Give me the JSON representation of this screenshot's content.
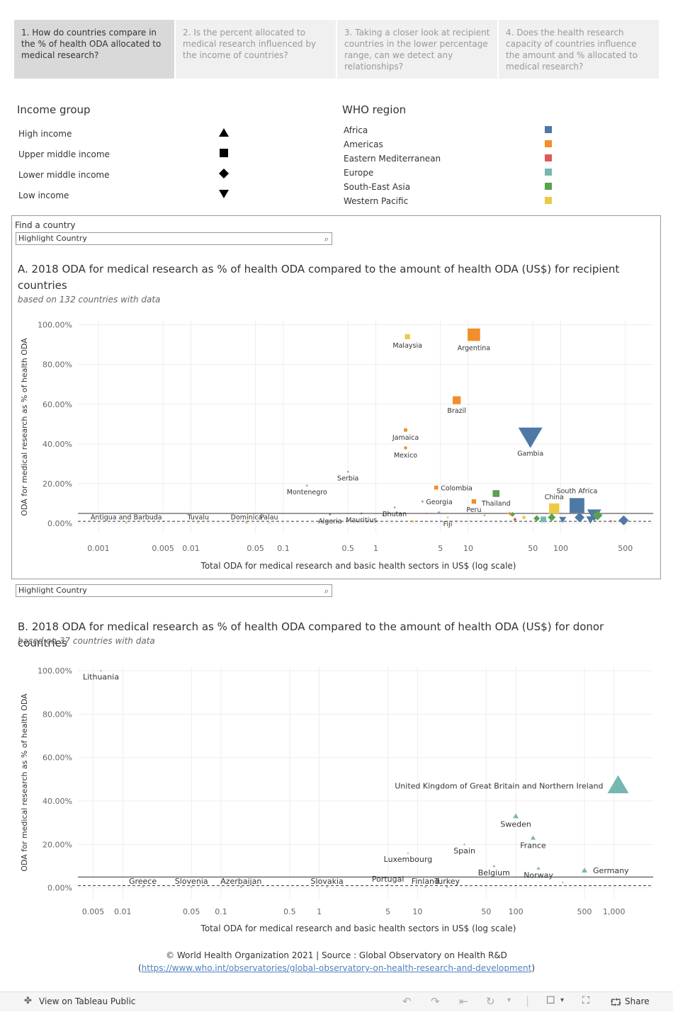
{
  "tabs": [
    "1. How do countries compare in the % of health ODA allocated to medical research?",
    "2. Is the percent allocated to medical research influenced by the income of countries?",
    "3. Taking a closer look at recipient countries in the lower percentage range, can we detect any relationships?",
    "4. Does the health research capacity of countries influence the amount and % allocated to medical research?"
  ],
  "income_legend": {
    "title": "Income group",
    "items": [
      {
        "label": "High income",
        "shape": "triangle-up"
      },
      {
        "label": "Upper middle income",
        "shape": "square"
      },
      {
        "label": "Lower middle income",
        "shape": "diamond"
      },
      {
        "label": "Low income",
        "shape": "triangle-down"
      }
    ]
  },
  "region_legend": {
    "title": "WHO region",
    "items": [
      {
        "label": "Africa",
        "color": "#4e79a7"
      },
      {
        "label": "Americas",
        "color": "#f28e2b"
      },
      {
        "label": "Eastern Mediterranean",
        "color": "#e15759"
      },
      {
        "label": "Europe",
        "color": "#76b7b2"
      },
      {
        "label": "South-East Asia",
        "color": "#59a14f"
      },
      {
        "label": "Western Pacific",
        "color": "#edc948"
      }
    ]
  },
  "find": {
    "label": "Find a country",
    "placeholder": "Highlight Country"
  },
  "find2": {
    "placeholder": "Highlight Country"
  },
  "chartA": {
    "title": "A. 2018 ODA for medical research as % of health ODA  compared to the amount of health ODA (US$) for recipient countries",
    "subtitle": "based on 132 countries with data"
  },
  "chartB": {
    "title": "B. 2018 ODA for medical research as % of health ODA compared to the amount of health ODA (US$) for donor countries",
    "subtitle": "based on 37 countries with data"
  },
  "chart_data": [
    {
      "type": "scatter",
      "xlabel": "Total ODA for medical research and basic health sectors in US$ (log scale)",
      "ylabel": "ODA for medical research as % of health ODA",
      "x_scale": "log",
      "xlim": [
        0.0006,
        1000
      ],
      "ylim": [
        -5,
        102
      ],
      "x_ticks": [
        0.001,
        0.005,
        0.01,
        0.05,
        0.1,
        0.5,
        1,
        5,
        10,
        50,
        100,
        500
      ],
      "x_tick_labels": [
        "0.001",
        "0.005",
        "0.01",
        "0.05",
        "0.1",
        "0.5",
        "1",
        "5",
        "10",
        "50",
        "100",
        "500"
      ],
      "y_ticks": [
        0,
        20,
        40,
        60,
        80,
        100
      ],
      "y_tick_labels": [
        "0.00%",
        "20.00%",
        "40.00%",
        "60.00%",
        "80.00%",
        "100.00%"
      ],
      "ref_lines": [
        5,
        1
      ],
      "points": [
        {
          "label": "Malaysia",
          "x": 2.2,
          "y": 94,
          "region": "Western Pacific",
          "income": "Upper middle income",
          "size": 9
        },
        {
          "label": "Argentina",
          "x": 11.5,
          "y": 95,
          "region": "Americas",
          "income": "Upper middle income",
          "size": 22
        },
        {
          "label": "Brazil",
          "x": 7.5,
          "y": 62,
          "region": "Americas",
          "income": "Upper middle income",
          "size": 14
        },
        {
          "label": "Jamaica",
          "x": 2.1,
          "y": 47,
          "region": "Americas",
          "income": "Upper middle income",
          "size": 6
        },
        {
          "label": "Mexico",
          "x": 2.1,
          "y": 38,
          "region": "Americas",
          "income": "Upper middle income",
          "size": 5
        },
        {
          "label": "Gambia",
          "x": 47,
          "y": 44,
          "region": "Africa",
          "income": "Low income",
          "size": 34
        },
        {
          "label": "Serbia",
          "x": 0.5,
          "y": 26,
          "region": "Europe",
          "income": "Upper middle income",
          "size": 3
        },
        {
          "label": "Montenegro",
          "x": 0.18,
          "y": 19,
          "region": "Europe",
          "income": "Upper middle income",
          "size": 3
        },
        {
          "label": "Colombia",
          "x": 4.5,
          "y": 18,
          "region": "Americas",
          "income": "Upper middle income",
          "size": 7
        },
        {
          "label": "Georgia",
          "x": 3.2,
          "y": 11,
          "region": "Europe",
          "income": "Lower middle income",
          "size": 4
        },
        {
          "label": "Bhutan",
          "x": 1.6,
          "y": 8,
          "region": "South-East Asia",
          "income": "Lower middle income",
          "size": 2
        },
        {
          "label": "Peru",
          "x": 11.5,
          "y": 11,
          "region": "Americas",
          "income": "Upper middle income",
          "size": 8
        },
        {
          "label": "Thailand",
          "x": 20,
          "y": 15,
          "region": "South-East Asia",
          "income": "Upper middle income",
          "size": 12
        },
        {
          "label": "China",
          "x": 85,
          "y": 7.5,
          "region": "Western Pacific",
          "income": "Upper middle income",
          "size": 18
        },
        {
          "label": "South Africa",
          "x": 150,
          "y": 9,
          "region": "Africa",
          "income": "Upper middle income",
          "size": 26
        },
        {
          "label": "Antigua and Barbuda",
          "x": 0.002,
          "y": 0.5,
          "region": "Americas",
          "income": "High income",
          "size": 2
        },
        {
          "label": "Tuvalu",
          "x": 0.012,
          "y": 0.5,
          "region": "Western Pacific",
          "income": "Upper middle income",
          "size": 2
        },
        {
          "label": "Dominica",
          "x": 0.04,
          "y": 0.5,
          "region": "Americas",
          "income": "Upper middle income",
          "size": 2
        },
        {
          "label": "Palau",
          "x": 0.07,
          "y": 0.5,
          "region": "Western Pacific",
          "income": "High income",
          "size": 2
        },
        {
          "label": "Algeria",
          "x": 0.32,
          "y": 4.5,
          "region": "Africa",
          "income": "Upper middle income",
          "size": 2
        },
        {
          "label": "Mauritius",
          "x": 0.7,
          "y": 5,
          "region": "Africa",
          "income": "Upper middle income",
          "size": 2
        },
        {
          "label": "Fiji",
          "x": 6,
          "y": 3,
          "region": "Western Pacific",
          "income": "Upper middle income",
          "size": 3
        },
        {
          "label": "",
          "x": 30,
          "y": 4.5,
          "region": "South-East Asia",
          "income": "Lower middle income",
          "size": 7
        },
        {
          "label": "",
          "x": 28,
          "y": 5,
          "region": "Americas",
          "income": "Lower middle income",
          "size": 5
        },
        {
          "label": "",
          "x": 32,
          "y": 2,
          "region": "Eastern Mediterranean",
          "income": "Lower middle income",
          "size": 5
        },
        {
          "label": "",
          "x": 40,
          "y": 3,
          "region": "Western Pacific",
          "income": "Lower middle income",
          "size": 6
        },
        {
          "label": "",
          "x": 55,
          "y": 2.5,
          "region": "South-East Asia",
          "income": "Lower middle income",
          "size": 9
        },
        {
          "label": "",
          "x": 65,
          "y": 2,
          "region": "Europe",
          "income": "Upper middle income",
          "size": 10
        },
        {
          "label": "",
          "x": 80,
          "y": 3,
          "region": "South-East Asia",
          "income": "Lower middle income",
          "size": 11
        },
        {
          "label": "",
          "x": 105,
          "y": 2,
          "region": "Africa",
          "income": "Low income",
          "size": 10
        },
        {
          "label": "",
          "x": 160,
          "y": 3,
          "region": "Africa",
          "income": "Lower middle income",
          "size": 14
        },
        {
          "label": "",
          "x": 230,
          "y": 4.5,
          "region": "Africa",
          "income": "Low income",
          "size": 20
        },
        {
          "label": "",
          "x": 250,
          "y": 4,
          "region": "South-East Asia",
          "income": "Lower middle income",
          "size": 14
        },
        {
          "label": "",
          "x": 210,
          "y": 2,
          "region": "Africa",
          "income": "Low income",
          "size": 12
        },
        {
          "label": "",
          "x": 480,
          "y": 1.5,
          "region": "Africa",
          "income": "Lower middle income",
          "size": 14
        },
        {
          "label": "",
          "x": 350,
          "y": 1,
          "region": "Eastern Mediterranean",
          "income": "Low income",
          "size": 4
        },
        {
          "label": "",
          "x": 3.5,
          "y": 5,
          "region": "Eastern Mediterranean",
          "income": "Lower middle income",
          "size": 2
        },
        {
          "label": "",
          "x": 4.8,
          "y": 5.5,
          "region": "Africa",
          "income": "Low income",
          "size": 2
        },
        {
          "label": "",
          "x": 2.5,
          "y": 1,
          "region": "Americas",
          "income": "Upper middle income",
          "size": 2
        },
        {
          "label": "",
          "x": 1.2,
          "y": 4,
          "region": "Eastern Mediterranean",
          "income": "Lower middle income",
          "size": 2
        },
        {
          "label": "",
          "x": 15,
          "y": 4,
          "region": "Americas",
          "income": "Lower middle income",
          "size": 3
        },
        {
          "label": "",
          "x": 7.5,
          "y": 1,
          "region": "Eastern Mediterranean",
          "income": "Low income",
          "size": 2
        }
      ]
    },
    {
      "type": "scatter",
      "xlabel": "Total ODA for medical research and basic health sectors in US$ (log scale)",
      "ylabel": "ODA for medical research as % of health ODA",
      "x_scale": "log",
      "xlim": [
        0.0035,
        2500
      ],
      "ylim": [
        -5,
        102
      ],
      "x_ticks": [
        0.005,
        0.01,
        0.05,
        0.1,
        0.5,
        1,
        5,
        10,
        50,
        100,
        500,
        1000
      ],
      "x_tick_labels": [
        "0.005",
        "0.01",
        "0.05",
        "0.1",
        "0.5",
        "1",
        "5",
        "10",
        "50",
        "100",
        "500",
        "1,000"
      ],
      "y_ticks": [
        0,
        20,
        40,
        60,
        80,
        100
      ],
      "y_tick_labels": [
        "0.00%",
        "20.00%",
        "40.00%",
        "60.00%",
        "80.00%",
        "100.00%"
      ],
      "ref_lines": [
        5,
        1
      ],
      "points": [
        {
          "label": "Lithuania",
          "x": 0.006,
          "y": 100,
          "region": "Europe",
          "income": "High income",
          "size": 2
        },
        {
          "label": "United Kingdom of Great Britain and Northern Ireland",
          "x": 1100,
          "y": 47,
          "region": "Europe",
          "income": "High income",
          "size": 30
        },
        {
          "label": "Sweden",
          "x": 100,
          "y": 33,
          "region": "Europe",
          "income": "High income",
          "size": 8
        },
        {
          "label": "France",
          "x": 150,
          "y": 23,
          "region": "Europe",
          "income": "High income",
          "size": 7
        },
        {
          "label": "Spain",
          "x": 30,
          "y": 20,
          "region": "Europe",
          "income": "High income",
          "size": 3
        },
        {
          "label": "Luxembourg",
          "x": 8,
          "y": 16,
          "region": "Europe",
          "income": "High income",
          "size": 2
        },
        {
          "label": "Germany",
          "x": 500,
          "y": 8,
          "region": "Europe",
          "income": "High income",
          "size": 8
        },
        {
          "label": "Belgium",
          "x": 60,
          "y": 10,
          "region": "Europe",
          "income": "High income",
          "size": 4
        },
        {
          "label": "Norway",
          "x": 170,
          "y": 9,
          "region": "Europe",
          "income": "High income",
          "size": 5
        },
        {
          "label": "Greece",
          "x": 0.016,
          "y": 0.5,
          "region": "Europe",
          "income": "High income",
          "size": 2
        },
        {
          "label": "Slovenia",
          "x": 0.05,
          "y": 0.5,
          "region": "Europe",
          "income": "High income",
          "size": 2
        },
        {
          "label": "Azerbaijan",
          "x": 0.16,
          "y": 0.5,
          "region": "Europe",
          "income": "Upper middle income",
          "size": 2
        },
        {
          "label": "Slovakia",
          "x": 1.2,
          "y": 0.5,
          "region": "Europe",
          "income": "High income",
          "size": 2
        },
        {
          "label": "Portugal",
          "x": 5,
          "y": 1.5,
          "region": "Europe",
          "income": "High income",
          "size": 2
        },
        {
          "label": "Finland",
          "x": 12,
          "y": 0.5,
          "region": "Europe",
          "income": "High income",
          "size": 2
        },
        {
          "label": "Turkey",
          "x": 20,
          "y": 0.5,
          "region": "Europe",
          "income": "Upper middle income",
          "size": 2
        },
        {
          "label": "",
          "x": 300,
          "y": 2.5,
          "region": "Americas",
          "income": "High income",
          "size": 3
        }
      ]
    }
  ],
  "footer": {
    "line1": "© World Health Organization 2021 | Source : Global Observatory on Health R&D",
    "paren_open": "(",
    "link": "https://www.who.int/observatories/global-observatory-on-health-research-and-development",
    "paren_close": ")"
  },
  "toolbar": {
    "view_label": "View on Tableau Public",
    "share_label": "Share"
  }
}
